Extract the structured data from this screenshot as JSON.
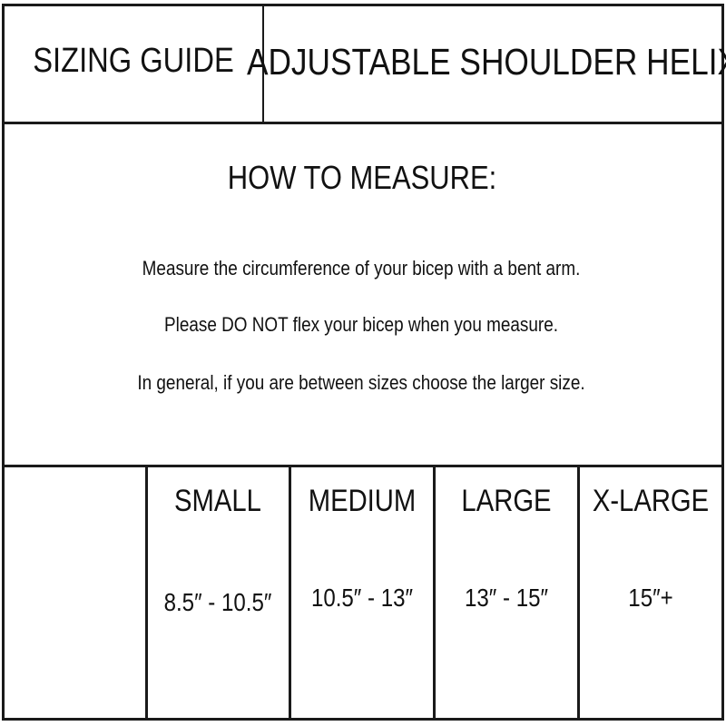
{
  "header": {
    "left_title": "SIZING GUIDE",
    "right_title": "ADJUSTABLE SHOULDER HELIX"
  },
  "instructions": {
    "heading": "HOW TO MEASURE:",
    "lines": [
      "Measure the circumference of your bicep with a bent arm.",
      "Please DO NOT flex your bicep when you measure.",
      "In general, if you are between sizes choose the larger size."
    ]
  },
  "size_table": {
    "sizes": [
      {
        "label": "SMALL",
        "range": "8.5″ - 10.5″"
      },
      {
        "label": "MEDIUM",
        "range": "10.5″ - 13″"
      },
      {
        "label": "LARGE",
        "range": "13″ - 15″"
      },
      {
        "label": "X-LARGE",
        "range": "15″+"
      }
    ]
  }
}
